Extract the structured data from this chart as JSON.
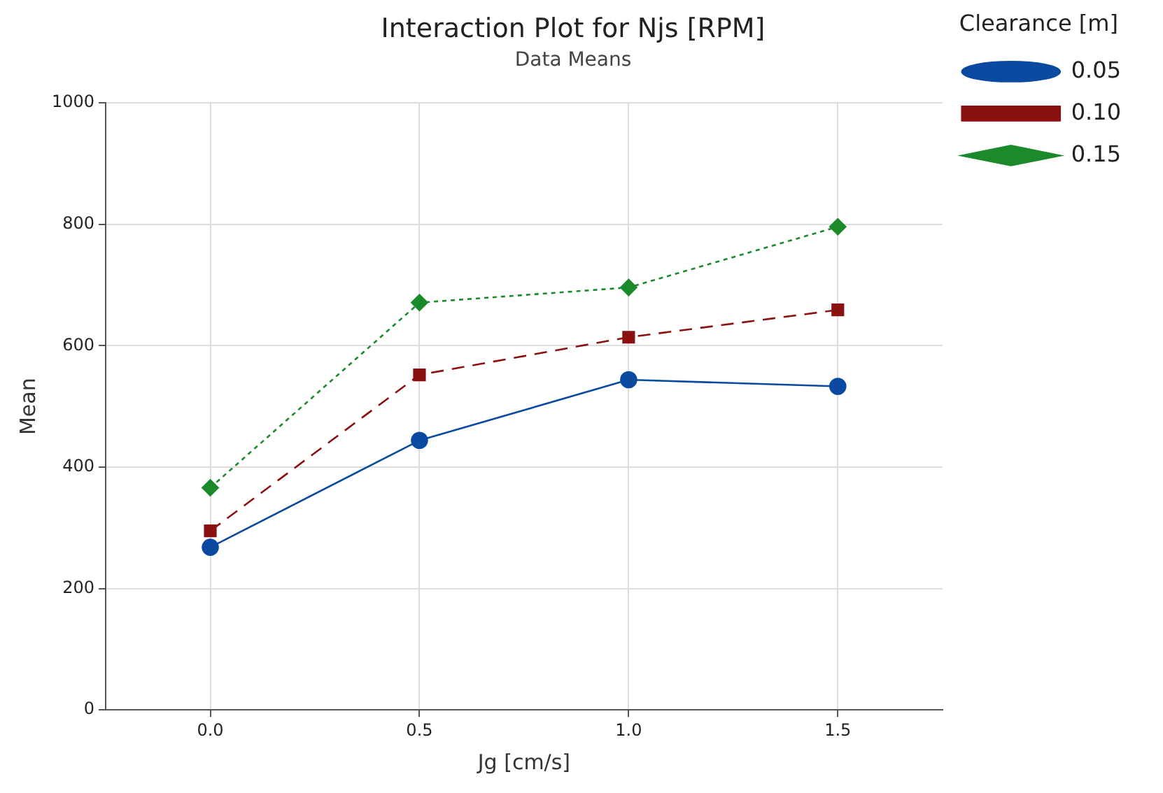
{
  "chart_data": {
    "type": "line",
    "title": "Interaction Plot for Njs [RPM]",
    "subtitle": "Data Means",
    "xlabel": "Jg [cm/s]",
    "ylabel": "Mean",
    "legend_title": "Clearance [m]",
    "x": [
      0,
      0.5,
      1,
      1.5
    ],
    "series": [
      {
        "name": "0.05",
        "color": "#0a4aa0",
        "values": [
          268,
          444,
          544,
          533
        ],
        "marker": "circle",
        "line_style": "solid"
      },
      {
        "name": "0.10",
        "color": "#8b1010",
        "values": [
          295,
          552,
          614,
          659
        ],
        "marker": "square",
        "line_style": "dashed"
      },
      {
        "name": "0.15",
        "color": "#1a8a2a",
        "values": [
          366,
          671,
          696,
          796
        ],
        "marker": "diamond",
        "line_style": "dotted"
      }
    ],
    "xlim": [
      -0.25,
      1.75
    ],
    "xticks": [
      {
        "value": 0,
        "label": "0.0"
      },
      {
        "value": 0.5,
        "label": "0.5"
      },
      {
        "value": 1,
        "label": "1.0"
      },
      {
        "value": 1.5,
        "label": "1.5"
      }
    ],
    "ylim": [
      0,
      1000
    ],
    "yticks": [
      0,
      200,
      400,
      600,
      800,
      1000
    ],
    "grid": true,
    "legend": "right"
  }
}
